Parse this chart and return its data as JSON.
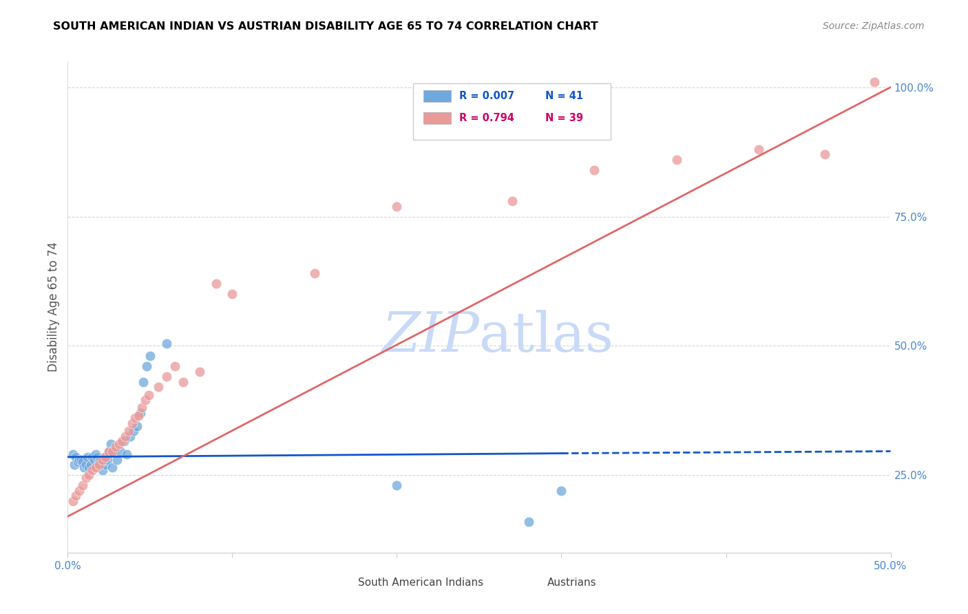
{
  "title": "SOUTH AMERICAN INDIAN VS AUSTRIAN DISABILITY AGE 65 TO 74 CORRELATION CHART",
  "source": "Source: ZipAtlas.com",
  "ylabel": "Disability Age 65 to 74",
  "xlim": [
    0.0,
    0.5
  ],
  "ylim": [
    0.1,
    1.05
  ],
  "xticks": [
    0.0,
    0.1,
    0.2,
    0.3,
    0.4,
    0.5
  ],
  "xticklabels": [
    "0.0%",
    "",
    "",
    "",
    "",
    "50.0%"
  ],
  "ytick_positions": [
    0.25,
    0.5,
    0.75,
    1.0
  ],
  "yticklabels": [
    "25.0%",
    "50.0%",
    "75.0%",
    "100.0%"
  ],
  "blue_color": "#6fa8dc",
  "pink_color": "#ea9999",
  "blue_line_color": "#1155cc",
  "pink_line_color": "#e06666",
  "grid_color": "#cccccc",
  "title_color": "#000000",
  "source_color": "#888888",
  "axis_label_color": "#555555",
  "tick_label_color": "#4a86c8",
  "watermark_color": "#c9daf8",
  "blue_scatter_x": [
    0.003,
    0.004,
    0.005,
    0.006,
    0.007,
    0.008,
    0.009,
    0.01,
    0.011,
    0.012,
    0.013,
    0.014,
    0.015,
    0.016,
    0.017,
    0.018,
    0.019,
    0.02,
    0.021,
    0.022,
    0.023,
    0.024,
    0.025,
    0.026,
    0.027,
    0.028,
    0.03,
    0.032,
    0.034,
    0.036,
    0.038,
    0.04,
    0.042,
    0.044,
    0.046,
    0.048,
    0.05,
    0.06,
    0.2,
    0.28,
    0.3
  ],
  "blue_scatter_y": [
    0.29,
    0.27,
    0.285,
    0.275,
    0.28,
    0.28,
    0.275,
    0.265,
    0.27,
    0.285,
    0.265,
    0.27,
    0.285,
    0.28,
    0.29,
    0.285,
    0.275,
    0.28,
    0.26,
    0.285,
    0.27,
    0.28,
    0.295,
    0.31,
    0.265,
    0.295,
    0.28,
    0.295,
    0.315,
    0.29,
    0.325,
    0.335,
    0.345,
    0.37,
    0.43,
    0.46,
    0.48,
    0.505,
    0.23,
    0.16,
    0.22
  ],
  "pink_scatter_x": [
    0.003,
    0.005,
    0.007,
    0.009,
    0.011,
    0.013,
    0.015,
    0.017,
    0.019,
    0.021,
    0.023,
    0.025,
    0.027,
    0.029,
    0.031,
    0.033,
    0.035,
    0.037,
    0.039,
    0.041,
    0.043,
    0.045,
    0.047,
    0.049,
    0.055,
    0.06,
    0.065,
    0.07,
    0.08,
    0.09,
    0.1,
    0.15,
    0.2,
    0.27,
    0.32,
    0.37,
    0.42,
    0.46,
    0.49
  ],
  "pink_scatter_y": [
    0.2,
    0.21,
    0.22,
    0.23,
    0.245,
    0.25,
    0.26,
    0.265,
    0.27,
    0.28,
    0.285,
    0.295,
    0.295,
    0.305,
    0.31,
    0.315,
    0.325,
    0.335,
    0.35,
    0.36,
    0.365,
    0.38,
    0.395,
    0.405,
    0.42,
    0.44,
    0.46,
    0.43,
    0.45,
    0.62,
    0.6,
    0.64,
    0.77,
    0.78,
    0.84,
    0.86,
    0.88,
    0.87,
    1.01
  ],
  "blue_trendline": [
    [
      0.0,
      0.3
    ],
    [
      0.285,
      0.292
    ]
  ],
  "blue_trendline_dashed": [
    [
      0.3,
      0.5
    ],
    [
      0.292,
      0.296
    ]
  ],
  "pink_trendline": [
    [
      0.0,
      0.5
    ],
    [
      0.17,
      1.0
    ]
  ]
}
